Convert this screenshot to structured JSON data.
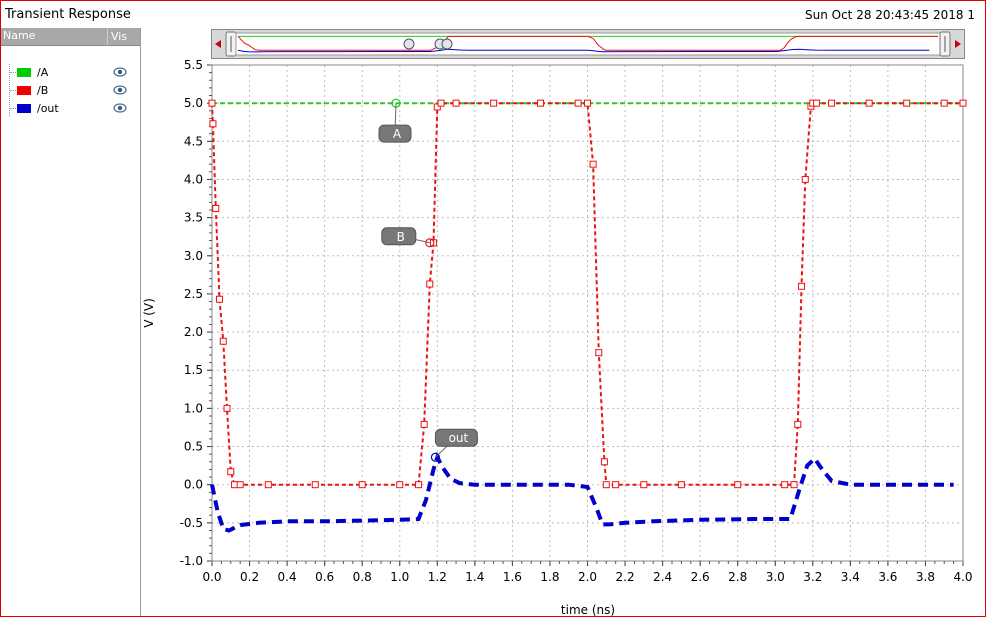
{
  "window": {
    "title": "Transient Response",
    "datetime": "Sun Oct 28 20:43:45 2018  1"
  },
  "legend": {
    "col_name": "Name",
    "col_vis": "Vis",
    "items": [
      {
        "label": "/A",
        "color": "#00cc00",
        "visible_icon": "eye-icon"
      },
      {
        "label": "/B",
        "color": "#ee0000",
        "visible_icon": "eye-icon"
      },
      {
        "label": "/out",
        "color": "#0000cc",
        "visible_icon": "eye-icon"
      }
    ]
  },
  "colors": {
    "A": "#22cc22",
    "B": "#ee1111",
    "out": "#0000cc",
    "grid": "#bdbdbd",
    "marker_label_bg": "#777777"
  },
  "chart_data": {
    "type": "line",
    "xlabel": "time (ns)",
    "ylabel": "V (V)",
    "xlim": [
      0.0,
      4.0
    ],
    "ylim": [
      -1.0,
      5.5
    ],
    "x_ticks": [
      "0.0",
      "0.2",
      "0.4",
      "0.6",
      "0.8",
      "1.0",
      "1.2",
      "1.4",
      "1.6",
      "1.8",
      "2.0",
      "2.2",
      "2.4",
      "2.6",
      "2.8",
      "3.0",
      "3.2",
      "3.4",
      "3.6",
      "3.8",
      "4.0"
    ],
    "y_ticks": [
      "-1.0",
      "-0.5",
      "0.0",
      "0.5",
      "1.0",
      "1.5",
      "2.0",
      "2.5",
      "3.0",
      "3.5",
      "4.0",
      "4.5",
      "5.0",
      "5.5"
    ],
    "grid": true,
    "series": [
      {
        "name": "A",
        "style": "dashed",
        "x": [
          0.0,
          4.0
        ],
        "y": [
          5.0,
          5.0
        ]
      },
      {
        "name": "B",
        "style": "dashed",
        "x": [
          0.0,
          0.005,
          0.02,
          0.04,
          0.06,
          0.08,
          0.1,
          0.12,
          0.15,
          0.3,
          0.55,
          0.8,
          1.0,
          1.1,
          1.13,
          1.16,
          1.18,
          1.2,
          1.22,
          1.3,
          1.5,
          1.75,
          1.95,
          2.0,
          2.03,
          2.06,
          2.09,
          2.1,
          2.15,
          2.3,
          2.5,
          2.8,
          3.05,
          3.1,
          3.12,
          3.14,
          3.16,
          3.19,
          3.2,
          3.22,
          3.3,
          3.5,
          3.7,
          3.9,
          4.0
        ],
        "y": [
          5.0,
          4.73,
          3.62,
          2.43,
          1.88,
          1.0,
          0.17,
          0.0,
          0.0,
          0.0,
          0.0,
          0.0,
          0.0,
          0.0,
          0.79,
          2.63,
          3.17,
          4.95,
          5.0,
          5.0,
          5.0,
          5.0,
          5.0,
          5.0,
          4.2,
          1.73,
          0.3,
          0.0,
          0.0,
          0.0,
          0.0,
          0.0,
          0.0,
          0.0,
          0.79,
          2.6,
          4.0,
          4.96,
          5.0,
          5.0,
          5.0,
          5.0,
          5.0,
          5.0,
          5.0
        ]
      },
      {
        "name": "out",
        "style": "dashed-bold",
        "x": [
          0.0,
          0.03,
          0.06,
          0.09,
          0.15,
          0.25,
          0.4,
          0.6,
          0.8,
          1.0,
          1.1,
          1.14,
          1.18,
          1.2,
          1.23,
          1.27,
          1.32,
          1.4,
          1.6,
          1.9,
          2.0,
          2.05,
          2.08,
          2.12,
          2.2,
          2.35,
          2.6,
          2.9,
          3.08,
          3.13,
          3.17,
          3.21,
          3.25,
          3.3,
          3.4,
          3.6,
          3.8,
          3.95
        ],
        "y": [
          0.0,
          -0.35,
          -0.58,
          -0.6,
          -0.53,
          -0.5,
          -0.48,
          -0.48,
          -0.47,
          -0.46,
          -0.45,
          -0.2,
          0.2,
          0.36,
          0.22,
          0.08,
          0.02,
          0.0,
          0.0,
          0.0,
          -0.03,
          -0.32,
          -0.52,
          -0.52,
          -0.5,
          -0.48,
          -0.46,
          -0.45,
          -0.45,
          -0.05,
          0.25,
          0.34,
          0.2,
          0.05,
          0.0,
          0.0,
          0.0,
          0.0
        ]
      }
    ],
    "annotations": [
      {
        "label": "A",
        "series": "A",
        "x": 0.98,
        "y": 5.0
      },
      {
        "label": "B",
        "series": "B",
        "x": 1.16,
        "y": 3.17
      },
      {
        "label": "out",
        "series": "out",
        "x": 1.19,
        "y": 0.36
      }
    ]
  }
}
